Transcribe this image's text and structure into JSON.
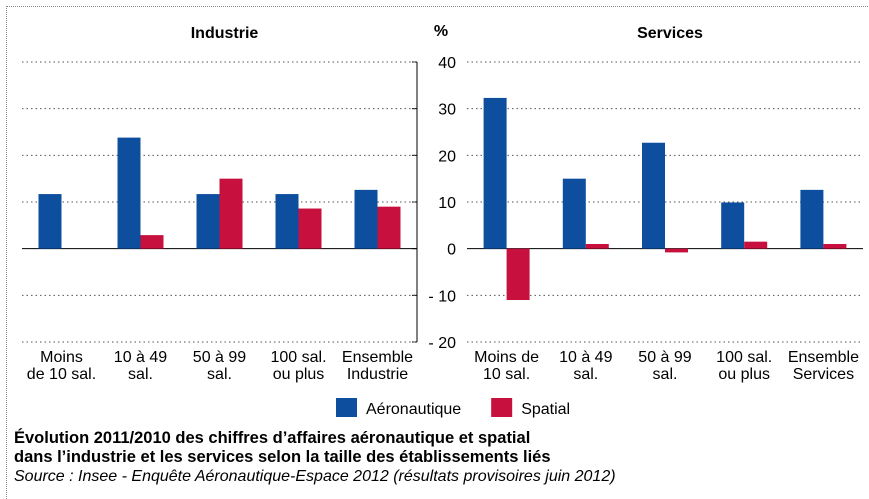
{
  "chart_data": {
    "type": "bar",
    "ylabel": "%",
    "ylim": [
      -20,
      40
    ],
    "yticks": [
      {
        "value": -20,
        "label": "- 20"
      },
      {
        "value": -10,
        "label": "- 10"
      },
      0,
      10,
      20,
      30,
      40
    ],
    "grid": true,
    "series": [
      {
        "name": "Aéronautique",
        "color": "#0d4f9e"
      },
      {
        "name": "Spatial",
        "color": "#c8103e"
      }
    ],
    "panels": [
      {
        "title": "Industrie",
        "categories": [
          "Moins\nde 10 sal.",
          "10 à 49\nsal.",
          "50 à 99\nsal.",
          "100 sal.\nou plus",
          "Ensemble\nIndustrie"
        ],
        "values": [
          [
            11.7,
            23.8,
            11.7,
            11.7,
            12.6
          ],
          [
            null,
            2.9,
            15.0,
            8.6,
            9.0
          ]
        ]
      },
      {
        "title": "Services",
        "categories": [
          "Moins de\n10 sal.",
          "10 à 49\nsal.",
          "50 à 99\nsal.",
          "100 sal.\nou plus",
          "Ensemble\nServices"
        ],
        "values": [
          [
            32.3,
            15.0,
            22.7,
            9.9,
            12.6
          ],
          [
            -11.0,
            1.0,
            -0.8,
            1.5,
            1.0
          ]
        ]
      }
    ],
    "title": "Évolution 2011/2010 des chiffres d’affaires aéronautique et spatial\ndans l’industrie et les services selon la taille des établissements liés",
    "source": "Source : Insee - Enquête Aéronautique-Espace 2012 (résultats provisoires juin 2012)"
  }
}
